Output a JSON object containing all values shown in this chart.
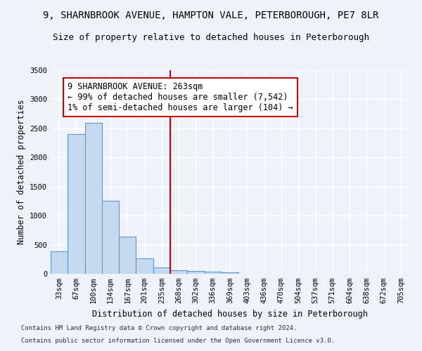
{
  "title": "9, SHARNBROOK AVENUE, HAMPTON VALE, PETERBOROUGH, PE7 8LR",
  "subtitle": "Size of property relative to detached houses in Peterborough",
  "xlabel": "Distribution of detached houses by size in Peterborough",
  "ylabel": "Number of detached properties",
  "footnote1": "Contains HM Land Registry data © Crown copyright and database right 2024.",
  "footnote2": "Contains public sector information licensed under the Open Government Licence v3.0.",
  "annotation_line1": "9 SHARNBROOK AVENUE: 263sqm",
  "annotation_line2": "← 99% of detached houses are smaller (7,542)",
  "annotation_line3": "1% of semi-detached houses are larger (104) →",
  "property_size": 263,
  "bar_labels": [
    "33sqm",
    "67sqm",
    "100sqm",
    "134sqm",
    "167sqm",
    "201sqm",
    "235sqm",
    "268sqm",
    "302sqm",
    "336sqm",
    "369sqm",
    "403sqm",
    "436sqm",
    "470sqm",
    "504sqm",
    "537sqm",
    "571sqm",
    "604sqm",
    "638sqm",
    "672sqm",
    "705sqm"
  ],
  "bar_values": [
    390,
    2400,
    2600,
    1260,
    640,
    270,
    110,
    65,
    50,
    40,
    25,
    0,
    0,
    0,
    0,
    0,
    0,
    0,
    0,
    0,
    0
  ],
  "bar_edge_color": "#5b9bd5",
  "bar_face_color": "#c5d9f1",
  "vline_color": "#cc0000",
  "annotation_box_color": "#cc0000",
  "background_color": "#eef3fb",
  "ylim": [
    0,
    3500
  ],
  "yticks": [
    0,
    500,
    1000,
    1500,
    2000,
    2500,
    3000,
    3500
  ],
  "grid_color": "#ffffff",
  "title_fontsize": 10,
  "subtitle_fontsize": 9,
  "axis_fontsize": 8.5,
  "tick_fontsize": 7.5,
  "annotation_fontsize": 8.5,
  "footnote_fontsize": 6.5
}
